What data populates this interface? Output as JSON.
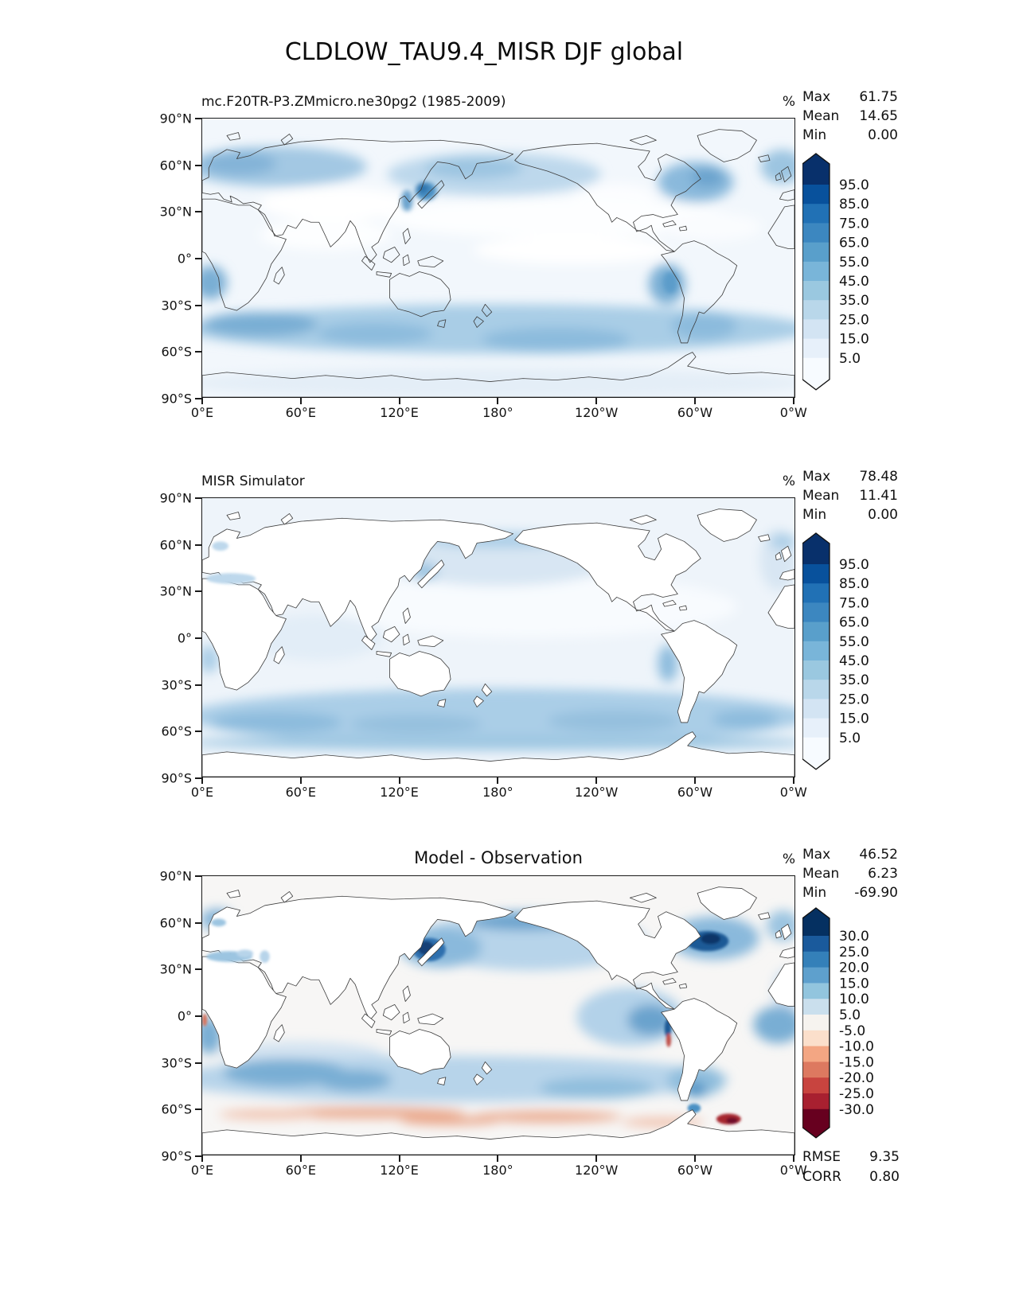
{
  "title": "CLDLOW_TAU9.4_MISR DJF global",
  "axis": {
    "x_ticks": [
      "0°E",
      "60°E",
      "120°E",
      "180°",
      "120°W",
      "60°W",
      "0°W"
    ],
    "y_ticks": [
      "90°N",
      "60°N",
      "30°N",
      "0°",
      "30°S",
      "60°S",
      "90°S"
    ]
  },
  "chart_data": [
    {
      "type": "heatmap",
      "map_type": "filled-contour global latitude-longitude map, Pacific-centered equirectangular",
      "title": "mc.F20TR-P3.ZMmicro.ne30pg2 (1985-2009)",
      "units": "%",
      "stats": {
        "max": 61.75,
        "mean": 14.65,
        "min": 0.0
      },
      "stats_rows": [
        [
          "Max",
          "61.75"
        ],
        [
          "Mean",
          "14.65"
        ],
        [
          "Min",
          "0.00"
        ]
      ],
      "levels": [
        5,
        15,
        25,
        35,
        45,
        55,
        65,
        75,
        85,
        95
      ],
      "colormap": "Blues",
      "colorbar": {
        "orientation": "vertical",
        "extend": "both",
        "tick_labels": [
          "95.0",
          "85.0",
          "75.0",
          "65.0",
          "55.0",
          "45.0",
          "35.0",
          "25.0",
          "15.0",
          "5.0"
        ],
        "colors_top_to_bottom": [
          "#08306b",
          "#08519c",
          "#2171b5",
          "#3c87c0",
          "#599fcb",
          "#79b5d9",
          "#9ac8e0",
          "#b9d7ea",
          "#d3e4f3",
          "#e7f0fa",
          "#f7fbff"
        ]
      },
      "xlabel": "",
      "ylabel": "",
      "xlim": [
        "0°E",
        "0°W"
      ],
      "ylim": [
        "90°S",
        "90°N"
      ],
      "description": "Model simulated low cloud fraction (tau > 9.4): light blue over most oceans, stronger blue bands over N Europe/Russia, Sea of Japan, N Pacific, NW Atlantic and Southern Ocean 40-60S, blue patches off Chile and Namibia"
    },
    {
      "type": "heatmap",
      "map_type": "filled-contour global latitude-longitude map, Pacific-centered equirectangular",
      "title": "MISR Simulator",
      "units": "%",
      "stats": {
        "max": 78.48,
        "mean": 11.41,
        "min": 0.0
      },
      "stats_rows": [
        [
          "Max",
          "78.48"
        ],
        [
          "Mean",
          "11.41"
        ],
        [
          "Min",
          "0.00"
        ]
      ],
      "levels": [
        5,
        15,
        25,
        35,
        45,
        55,
        65,
        75,
        85,
        95
      ],
      "colormap": "Blues",
      "colorbar": {
        "orientation": "vertical",
        "extend": "both",
        "tick_labels": [
          "95.0",
          "85.0",
          "75.0",
          "65.0",
          "55.0",
          "45.0",
          "35.0",
          "25.0",
          "15.0",
          "5.0"
        ],
        "colors_top_to_bottom": [
          "#08306b",
          "#08519c",
          "#2171b5",
          "#3c87c0",
          "#599fcb",
          "#79b5d9",
          "#9ac8e0",
          "#b9d7ea",
          "#d3e4f3",
          "#e7f0fa",
          "#f7fbff"
        ]
      },
      "xlabel": "",
      "ylabel": "",
      "xlim": [
        "0°E",
        "0°W"
      ],
      "ylim": [
        "90°S",
        "90°N"
      ],
      "description": "MISR satellite-observed low cloud fraction: ocean-only light blue field, strongest in Southern Ocean 45-65S, moderate off Chile coast; land is white (no retrieval)"
    },
    {
      "type": "heatmap",
      "map_type": "filled-contour global latitude-longitude difference map, Pacific-centered equirectangular",
      "title": "Model - Observation",
      "units": "%",
      "stats": {
        "max": 46.52,
        "mean": 6.23,
        "min": -69.9
      },
      "stats_rows": [
        [
          "Max",
          "46.52"
        ],
        [
          "Mean",
          "6.23"
        ],
        [
          "Min",
          "-69.90"
        ]
      ],
      "levels": [
        -30,
        -25,
        -20,
        -15,
        -10,
        -5,
        5,
        10,
        15,
        20,
        25,
        30
      ],
      "colormap": "RdBu",
      "colorbar": {
        "orientation": "vertical",
        "extend": "both",
        "tick_labels": [
          "30.0",
          "25.0",
          "20.0",
          "15.0",
          "10.0",
          "5.0",
          "-5.0",
          "-10.0",
          "-15.0",
          "-20.0",
          "-25.0",
          "-30.0"
        ],
        "colors_top_to_bottom": [
          "#053061",
          "#1a5a9c",
          "#3480b9",
          "#5ea0cd",
          "#92c5de",
          "#cadfed",
          "#f6f3ef",
          "#fbdfcb",
          "#f3a683",
          "#dd7960",
          "#c8443f",
          "#a82030",
          "#67001f"
        ]
      },
      "extra_rows": [
        [
          "RMSE",
          "9.35"
        ],
        [
          "CORR",
          "0.80"
        ]
      ],
      "rmse": 9.35,
      "corr": 0.8,
      "xlabel": "",
      "ylabel": "",
      "xlim": [
        "0°E",
        "0°W"
      ],
      "ylim": [
        "90°S",
        "90°N"
      ],
      "description": "Model minus MISR: strong positive (blue) blobs east of Japan, NW Atlantic off US east coast, N Pacific/Bering, SE Pacific, S Atlantic off Namibia and Southern Ocean band; negative (red) ring along Antarctic coastline with dark red spot near Weddell Sea; land white"
    }
  ]
}
